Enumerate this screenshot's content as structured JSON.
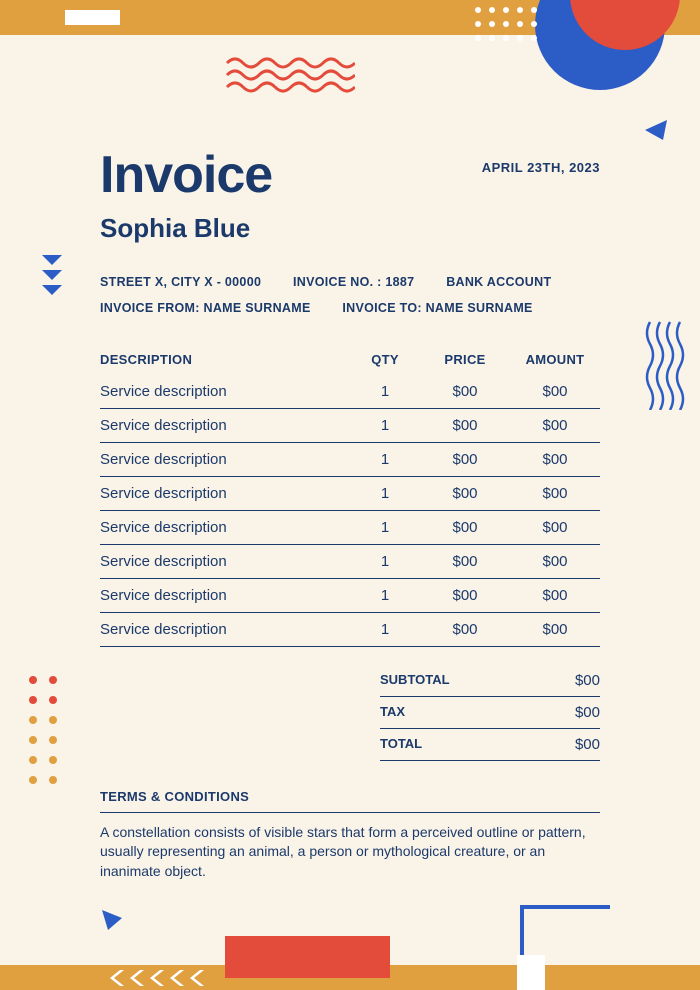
{
  "colors": {
    "bg": "#faf3e8",
    "primary": "#1b3a6b",
    "orange": "#e0a03f",
    "red": "#e34b3b",
    "blue": "#2c5cc5"
  },
  "header": {
    "title": "Invoice",
    "subtitle": "Sophia Blue",
    "date": "APRIL 23TH, 2023"
  },
  "meta": {
    "address": "STREET X, CITY X - 00000",
    "invoice_no": "INVOICE NO. : 1887",
    "bank": "BANK ACCOUNT",
    "from": "INVOICE FROM: NAME SURNAME",
    "to": "INVOICE TO: NAME SURNAME"
  },
  "table": {
    "headers": {
      "desc": "DESCRIPTION",
      "qty": "QTY",
      "price": "PRICE",
      "amount": "AMOUNT"
    },
    "rows": [
      {
        "desc": "Service description",
        "qty": "1",
        "price": "$00",
        "amount": "$00"
      },
      {
        "desc": "Service description",
        "qty": "1",
        "price": "$00",
        "amount": "$00"
      },
      {
        "desc": "Service description",
        "qty": "1",
        "price": "$00",
        "amount": "$00"
      },
      {
        "desc": "Service description",
        "qty": "1",
        "price": "$00",
        "amount": "$00"
      },
      {
        "desc": "Service description",
        "qty": "1",
        "price": "$00",
        "amount": "$00"
      },
      {
        "desc": "Service description",
        "qty": "1",
        "price": "$00",
        "amount": "$00"
      },
      {
        "desc": "Service description",
        "qty": "1",
        "price": "$00",
        "amount": "$00"
      },
      {
        "desc": "Service description",
        "qty": "1",
        "price": "$00",
        "amount": "$00"
      }
    ]
  },
  "totals": {
    "subtotal_label": "SUBTOTAL",
    "subtotal_value": "$00",
    "tax_label": "TAX",
    "tax_value": "$00",
    "total_label": "TOTAL",
    "total_value": "$00"
  },
  "terms": {
    "title": "TERMS & CONDITIONS",
    "text": "A constellation consists of visible stars that form a perceived outline or pattern, usually representing an animal, a person or mythological creature, or an inanimate object."
  }
}
